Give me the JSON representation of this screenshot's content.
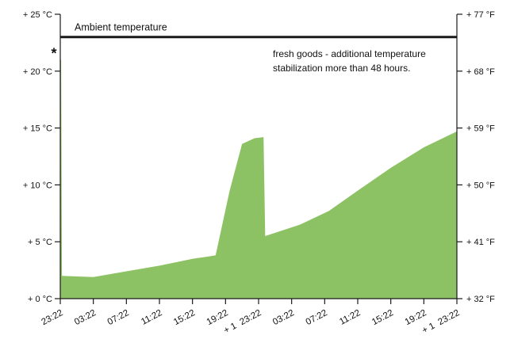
{
  "chart_data": {
    "type": "area",
    "left_axis_unit": "°C",
    "right_axis_unit": "°F",
    "y_left_ticks": [
      "+ 0 °C",
      "+ 5 °C",
      "+ 10 °C",
      "+ 15 °C",
      "+ 20 °C",
      "+ 25 °C"
    ],
    "y_right_ticks": [
      "+ 32 °F",
      "+ 41 °F",
      "+ 50 °F",
      "+ 59 °F",
      "+ 68 °F",
      "+ 77 °F"
    ],
    "ylim": [
      0,
      25
    ],
    "x_ticks": [
      "23:22",
      "03:22",
      "07:22",
      "11:22",
      "15:22",
      "19:22",
      "+ 1  23:22",
      "03:22",
      "07:22",
      "11:22",
      "15:22",
      "19:22",
      "+ 1  23:22"
    ],
    "x_hours_range": [
      0,
      48
    ],
    "ambient": {
      "label": "Ambient temperature",
      "value": 23.0
    },
    "annotation_text": [
      "fresh goods  - additional temperature",
      "stabilization more than 48 hours."
    ],
    "peak_marker": "*",
    "fill_color": "#8dc264",
    "series": [
      {
        "x_hours": [
          0,
          0.1,
          0.2,
          4,
          8,
          12,
          16,
          18.8,
          20.5,
          22,
          23.5,
          24.6,
          24.8,
          29,
          32.5,
          36,
          40,
          44,
          48
        ],
        "values": [
          21.0,
          21.0,
          2.0,
          1.9,
          2.4,
          2.9,
          3.5,
          3.8,
          9.5,
          13.6,
          14.1,
          14.2,
          5.5,
          6.5,
          7.7,
          9.5,
          11.5,
          13.3,
          14.7
        ]
      }
    ],
    "grid": false
  }
}
